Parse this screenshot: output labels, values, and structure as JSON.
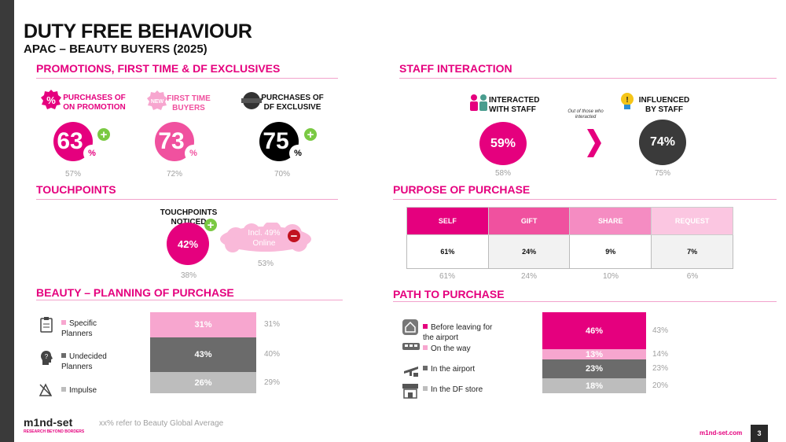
{
  "header": {
    "title": "DUTY FREE BEHAVIOUR",
    "subtitle": "APAC – BEAUTY BUYERS (2025)"
  },
  "promotions": {
    "heading": "PROMOTIONS, FIRST TIME & DF EXCLUSIVES",
    "items": [
      {
        "label": "PURCHASES OF ON PROMOTION",
        "value": "63",
        "unit": "%",
        "avg": "57%",
        "icon": "percent-badge-icon"
      },
      {
        "label": "FIRST TIME BUYERS",
        "value": "73",
        "unit": "%",
        "avg": "72%",
        "icon": "new-badge-icon"
      },
      {
        "label": "PURCHASES OF DF EXCLUSIVE",
        "value": "75",
        "unit": "%",
        "avg": "70%",
        "icon": "exclusive-seal-icon"
      }
    ]
  },
  "staff": {
    "heading": "STAFF INTERACTION",
    "interacted_label": "INTERACTED WITH STAFF",
    "interacted_value": "59%",
    "interacted_avg": "58%",
    "note": "Out of those who interacted",
    "influenced_label": "INFLUENCED BY STAFF",
    "influenced_value": "74%",
    "influenced_avg": "75%"
  },
  "touchpoints": {
    "heading": "TOUCHPOINTS",
    "label": "TOUCHPOINTS NOTICED",
    "value": "42%",
    "avg": "38%",
    "online_text": "Incl. 49% Online",
    "online_avg": "53%"
  },
  "purpose": {
    "heading": "PURPOSE OF PURCHASE",
    "columns": [
      "SELF",
      "GIFT",
      "SHARE",
      "REQUEST"
    ],
    "values": [
      "61%",
      "24%",
      "9%",
      "7%"
    ],
    "averages": [
      "61%",
      "24%",
      "10%",
      "6%"
    ],
    "colors": [
      "#e5007e",
      "#f0519f",
      "#f58cc2",
      "#fbc6e1"
    ]
  },
  "planning": {
    "heading": "BEAUTY – PLANNING OF PURCHASE",
    "items": [
      {
        "label": "Specific Planners",
        "value": "31%",
        "avg": "31%",
        "share": 31,
        "color": "#f7a6cf"
      },
      {
        "label": "Undecided Planners",
        "value": "43%",
        "avg": "40%",
        "share": 43,
        "color": "#6b6b6b"
      },
      {
        "label": "Impulse",
        "value": "26%",
        "avg": "29%",
        "share": 26,
        "color": "#bdbdbd"
      }
    ]
  },
  "path": {
    "heading": "PATH TO PURCHASE",
    "items": [
      {
        "label": "Before leaving for the airport",
        "value": "46%",
        "avg": "43%",
        "share": 46,
        "color": "#e5007e"
      },
      {
        "label": "On the way",
        "value": "13%",
        "avg": "14%",
        "share": 13,
        "color": "#f7a6cf"
      },
      {
        "label": "In the airport",
        "value": "23%",
        "avg": "23%",
        "share": 23,
        "color": "#6b6b6b"
      },
      {
        "label": "In the DF store",
        "value": "18%",
        "avg": "20%",
        "share": 18,
        "color": "#bdbdbd"
      }
    ]
  },
  "footer": {
    "logo": "m1nd-set",
    "tagline": "RESEARCH BEYOND BORDERS",
    "note": "xx% refer to Beauty Global Average",
    "site": "m1nd-set.com",
    "page": "3"
  }
}
